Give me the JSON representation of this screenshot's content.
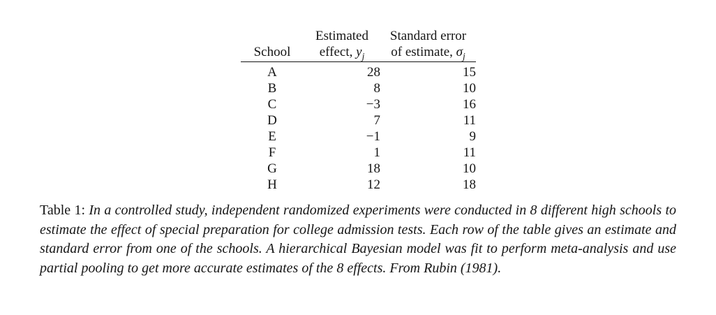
{
  "table": {
    "header": {
      "school": "School",
      "estimated_line1": "Estimated",
      "effect_prefix": "effect, ",
      "effect_symbol": "y",
      "stderr_line1": "Standard error",
      "stderr_prefix": "of estimate, ",
      "stderr_symbol": "σ",
      "subscript": "j"
    },
    "rows": [
      {
        "school": "A",
        "effect": "28",
        "stderr": "15"
      },
      {
        "school": "B",
        "effect": "8",
        "stderr": "10"
      },
      {
        "school": "C",
        "effect": "−3",
        "stderr": "16"
      },
      {
        "school": "D",
        "effect": "7",
        "stderr": "11"
      },
      {
        "school": "E",
        "effect": "−1",
        "stderr": "9"
      },
      {
        "school": "F",
        "effect": "1",
        "stderr": "11"
      },
      {
        "school": "G",
        "effect": "18",
        "stderr": "10"
      },
      {
        "school": "H",
        "effect": "12",
        "stderr": "18"
      }
    ]
  },
  "caption": {
    "label": "Table 1:",
    "body": "In a controlled study, independent randomized experiments were conducted in 8 different high schools to estimate the effect of special preparation for college admission tests. Each row of the table gives an estimate and standard error from one of the schools. A hierarchical Bayesian model was fit to perform meta-analysis and use partial pooling to get more accurate estimates of the 8 effects. From Rubin (1981)."
  },
  "colors": {
    "text": "#161616",
    "background": "#ffffff",
    "rule": "#161616"
  }
}
